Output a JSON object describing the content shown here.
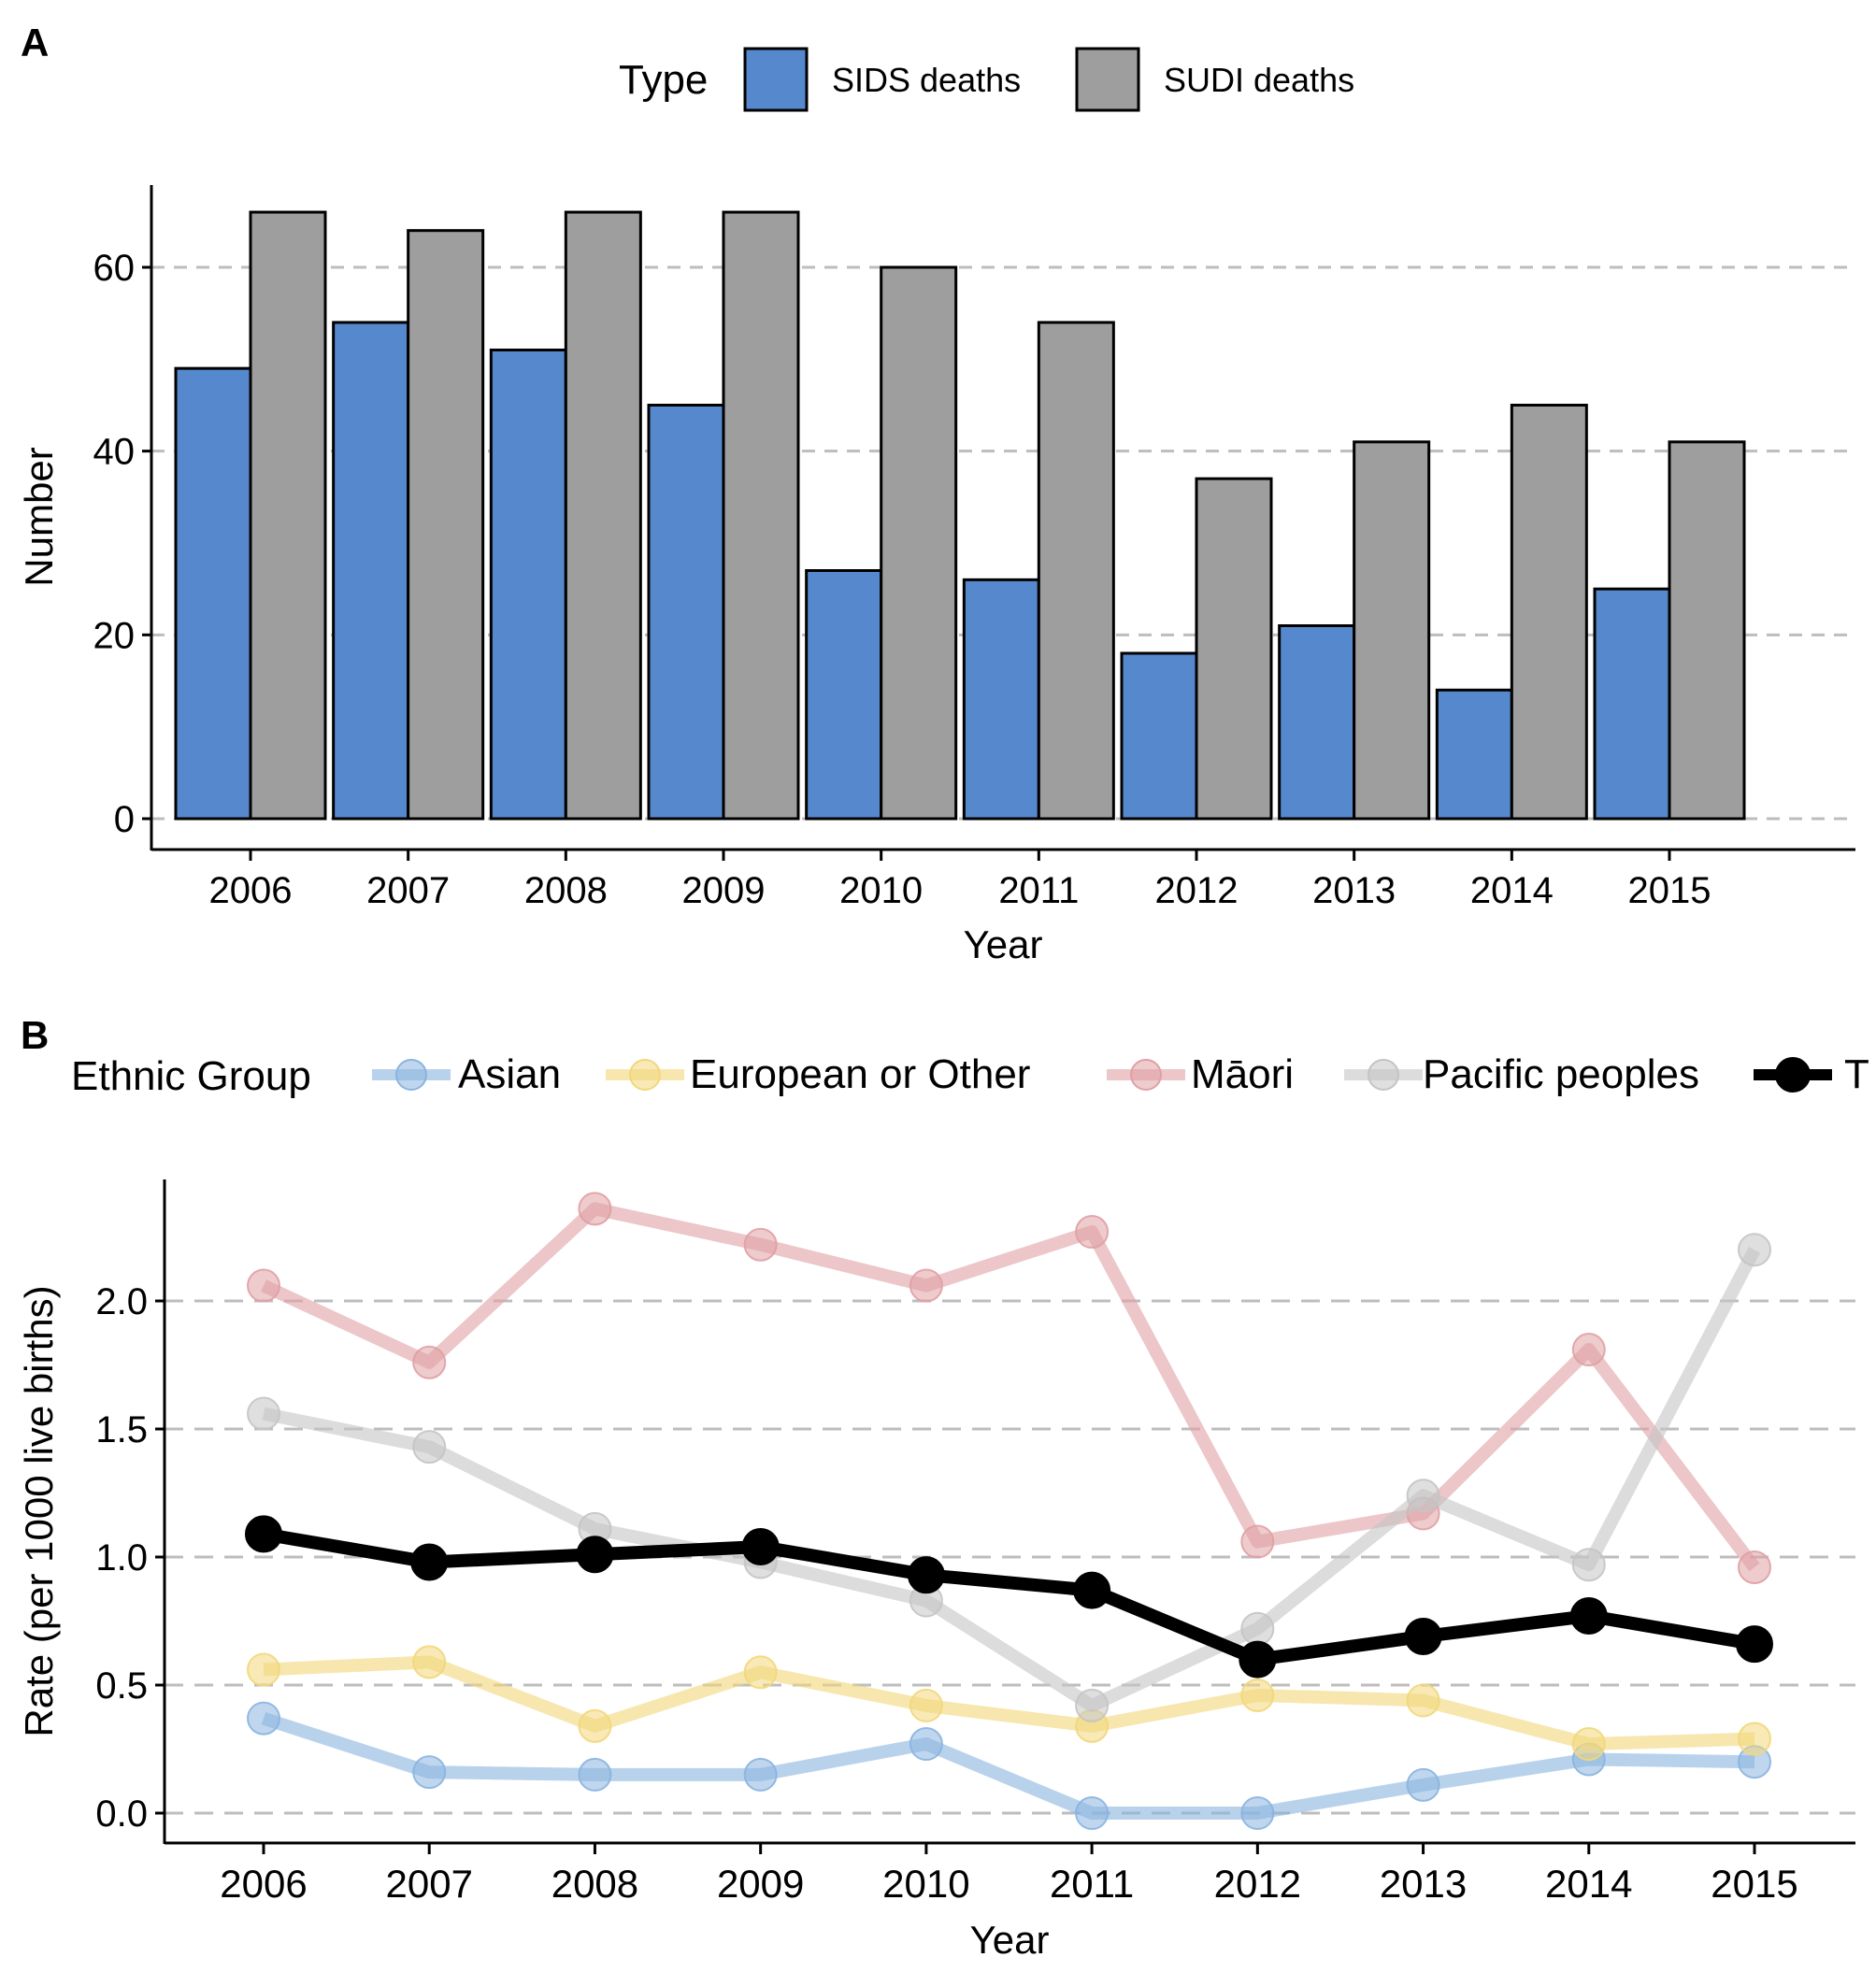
{
  "panel_a": {
    "tag": "A",
    "chart_data": {
      "type": "bar",
      "categories": [
        "2006",
        "2007",
        "2008",
        "2009",
        "2010",
        "2011",
        "2012",
        "2013",
        "2014",
        "2015"
      ],
      "series": [
        {
          "name": "SIDS deaths",
          "color": "#5588cc",
          "values": [
            49,
            54,
            51,
            45,
            27,
            26,
            18,
            21,
            14,
            25
          ]
        },
        {
          "name": "SUDI deaths",
          "color": "#9e9e9e",
          "values": [
            66,
            64,
            66,
            66,
            60,
            54,
            37,
            41,
            45,
            41
          ]
        }
      ],
      "legend_title": "Type",
      "legend_position": "top",
      "xlabel": "Year",
      "ylabel": "Number",
      "ylim": [
        0,
        69
      ],
      "yticks": [
        0,
        20,
        40,
        60
      ],
      "grid": "horizontal-dashed"
    }
  },
  "panel_b": {
    "tag": "B",
    "chart_data": {
      "type": "line",
      "x": [
        "2006",
        "2007",
        "2008",
        "2009",
        "2010",
        "2011",
        "2012",
        "2013",
        "2014",
        "2015"
      ],
      "series": [
        {
          "name": "Asian",
          "color": "#8ab4e0",
          "values": [
            0.37,
            0.16,
            0.15,
            0.15,
            0.27,
            0.0,
            0.0,
            0.11,
            0.21,
            0.2
          ]
        },
        {
          "name": "European or Other",
          "color": "#f2d77a",
          "values": [
            0.56,
            0.59,
            0.34,
            0.55,
            0.42,
            0.34,
            0.46,
            0.44,
            0.27,
            0.29
          ]
        },
        {
          "name": "Māori",
          "color": "#e0a0a4",
          "values": [
            2.06,
            1.76,
            2.36,
            2.22,
            2.06,
            2.27,
            1.06,
            1.17,
            1.81,
            0.96
          ]
        },
        {
          "name": "Pacific peoples",
          "color": "#c4c4c4",
          "values": [
            1.56,
            1.43,
            1.11,
            0.98,
            0.83,
            0.42,
            0.72,
            1.24,
            0.97,
            2.2
          ]
        },
        {
          "name": "T",
          "color": "#000000",
          "values": [
            1.09,
            0.98,
            1.01,
            1.04,
            0.93,
            0.87,
            0.6,
            0.69,
            0.77,
            0.66
          ]
        }
      ],
      "legend_title": "Ethnic Group",
      "legend_position": "top",
      "xlabel": "Year",
      "ylabel": "Rate (per 1000 live births)",
      "ylim": [
        -0.12,
        2.5
      ],
      "yticks": [
        0.0,
        0.5,
        1.0,
        1.5,
        2.0
      ],
      "ytick_labels": [
        "0.0",
        "0.5",
        "1.0",
        "1.5",
        "2.0"
      ],
      "grid": "horizontal-dashed"
    }
  }
}
